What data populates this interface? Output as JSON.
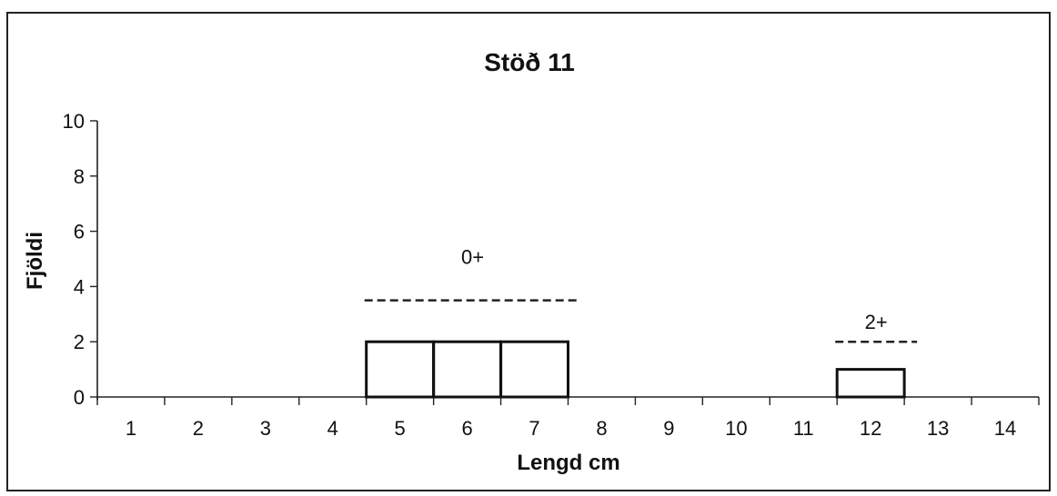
{
  "chart_data": {
    "type": "bar",
    "title": "Stöð 11",
    "xlabel": "Lengd cm",
    "ylabel": "Fjöldi",
    "categories": [
      "1",
      "2",
      "3",
      "4",
      "5",
      "6",
      "7",
      "8",
      "9",
      "10",
      "11",
      "12",
      "13",
      "14"
    ],
    "values": [
      0,
      0,
      0,
      0,
      2,
      2,
      2,
      0,
      0,
      0,
      0,
      1,
      0,
      0
    ],
    "ylim": [
      0,
      10
    ],
    "yticks": [
      0,
      2,
      4,
      6,
      8,
      10
    ],
    "grid": false,
    "annotations": [
      {
        "label": "0+",
        "from_category": "5",
        "to_category": "7",
        "y": 3.5
      },
      {
        "label": "2+",
        "from_category": "12",
        "to_category": "12",
        "y": 2
      }
    ]
  }
}
